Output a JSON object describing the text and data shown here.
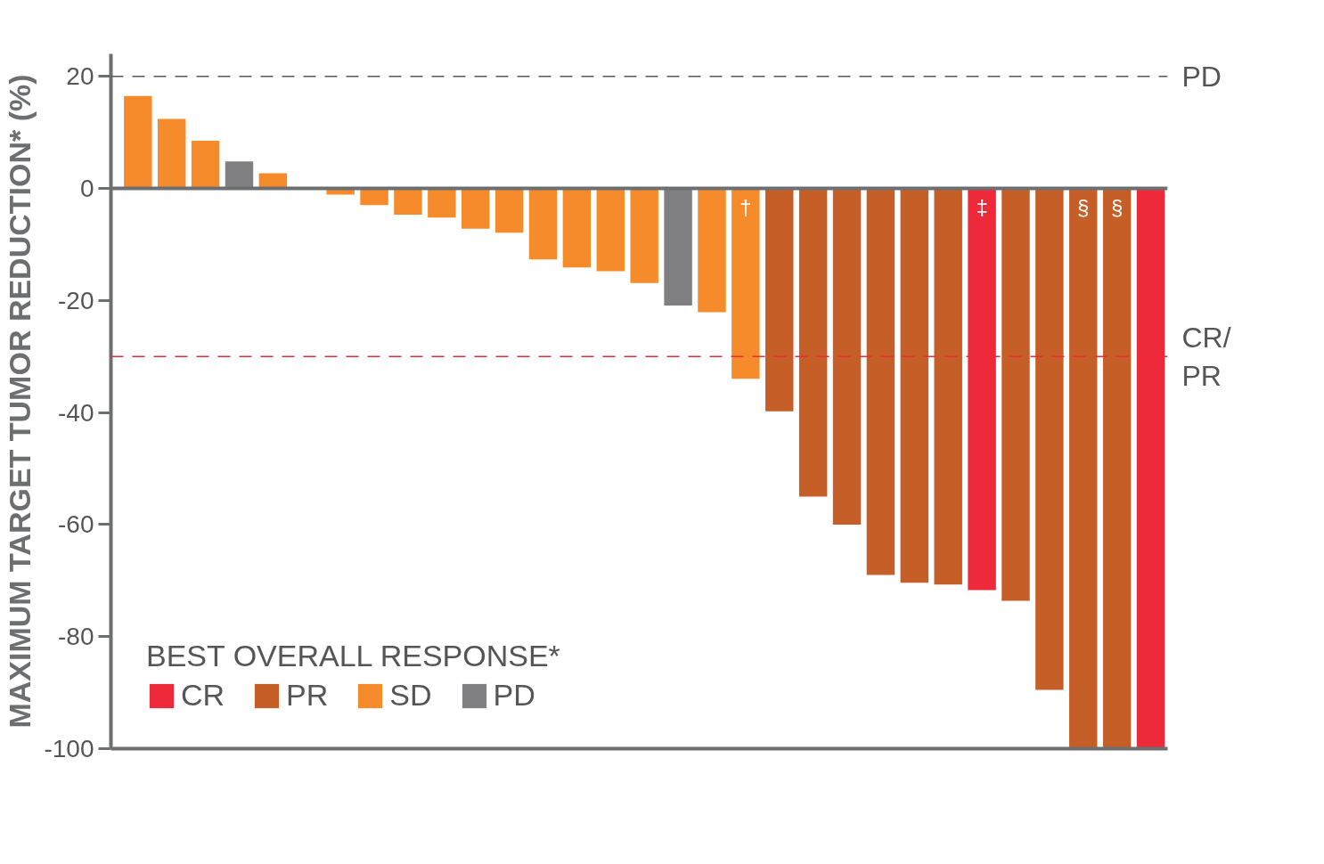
{
  "chart_data": {
    "type": "bar",
    "stacked": true,
    "ylabel": "MAXIMUM TARGET TUMOR REDUCTION* (%)",
    "legend_title": "BEST OVERALL RESPONSE*",
    "legend": "bottom left",
    "tick_labels": "y",
    "grid": false,
    "categories": [
      null,
      null,
      null,
      null,
      null,
      null,
      null,
      null,
      null,
      null,
      null,
      null,
      null,
      null,
      null,
      null,
      null,
      null,
      null,
      null,
      null,
      null,
      null,
      null,
      null,
      null,
      null,
      null,
      null,
      null,
      null
    ],
    "ylim": [
      -100,
      24
    ],
    "yticks": [
      20,
      0,
      -20,
      -40,
      -60,
      -80,
      -100
    ],
    "series": [
      {
        "name": "CR",
        "color": "#ee2a3a",
        "values": [
          null,
          null,
          null,
          null,
          null,
          null,
          null,
          null,
          null,
          null,
          null,
          null,
          null,
          null,
          null,
          null,
          null,
          null,
          null,
          null,
          null,
          null,
          null,
          null,
          null,
          -71.7,
          null,
          null,
          null,
          null,
          -100
        ],
        "value_labels": [
          null,
          null,
          null,
          null,
          null,
          null,
          null,
          null,
          null,
          null,
          null,
          null,
          null,
          null,
          null,
          null,
          null,
          null,
          null,
          null,
          null,
          null,
          null,
          null,
          null,
          "‡",
          null,
          null,
          null,
          null,
          null
        ]
      },
      {
        "name": "PR",
        "color": "#c65e28",
        "values": [
          null,
          null,
          null,
          null,
          null,
          null,
          null,
          null,
          null,
          null,
          null,
          null,
          null,
          null,
          null,
          null,
          null,
          null,
          null,
          -39.8,
          -55,
          -60,
          -69,
          -70.4,
          -70.7,
          null,
          -73.6,
          -89.5,
          -100,
          -100,
          null
        ],
        "value_labels": [
          null,
          null,
          null,
          null,
          null,
          null,
          null,
          null,
          null,
          null,
          null,
          null,
          null,
          null,
          null,
          null,
          null,
          null,
          null,
          null,
          null,
          null,
          null,
          null,
          null,
          null,
          null,
          null,
          "§",
          "§",
          null
        ]
      },
      {
        "name": "SD",
        "color": "#f58b2a",
        "values": [
          16.5,
          12.4,
          8.5,
          null,
          2.7,
          0,
          -1.1,
          -3,
          -4.7,
          -5.2,
          -7.2,
          -7.9,
          -12.7,
          -14.1,
          -14.8,
          -16.9,
          null,
          -22.1,
          -34,
          null,
          null,
          null,
          null,
          null,
          null,
          null,
          null,
          null,
          null,
          null,
          null
        ],
        "value_labels": [
          null,
          null,
          null,
          null,
          null,
          null,
          null,
          null,
          null,
          null,
          null,
          null,
          null,
          null,
          null,
          null,
          null,
          null,
          "†",
          null,
          null,
          null,
          null,
          null,
          null,
          null,
          null,
          null,
          null,
          null,
          null
        ]
      },
      {
        "name": "PD",
        "color": "#808083",
        "values": [
          null,
          null,
          null,
          4.8,
          null,
          null,
          null,
          null,
          null,
          null,
          null,
          null,
          null,
          null,
          null,
          null,
          -20.9,
          null,
          null,
          null,
          null,
          null,
          null,
          null,
          null,
          null,
          null,
          null,
          null,
          null,
          null
        ]
      }
    ],
    "ref_lines": [
      {
        "axis": "y",
        "value": 20,
        "label": "PD",
        "color": "#555555",
        "line_style": "dashed"
      },
      {
        "axis": "y",
        "value": -30,
        "label": "CR/\nPR",
        "color": "#ee2a3a",
        "line_style": "dashed"
      },
      {
        "axis": "y",
        "value": 0,
        "color": "#6d6e70",
        "line_style": "solid"
      }
    ]
  }
}
